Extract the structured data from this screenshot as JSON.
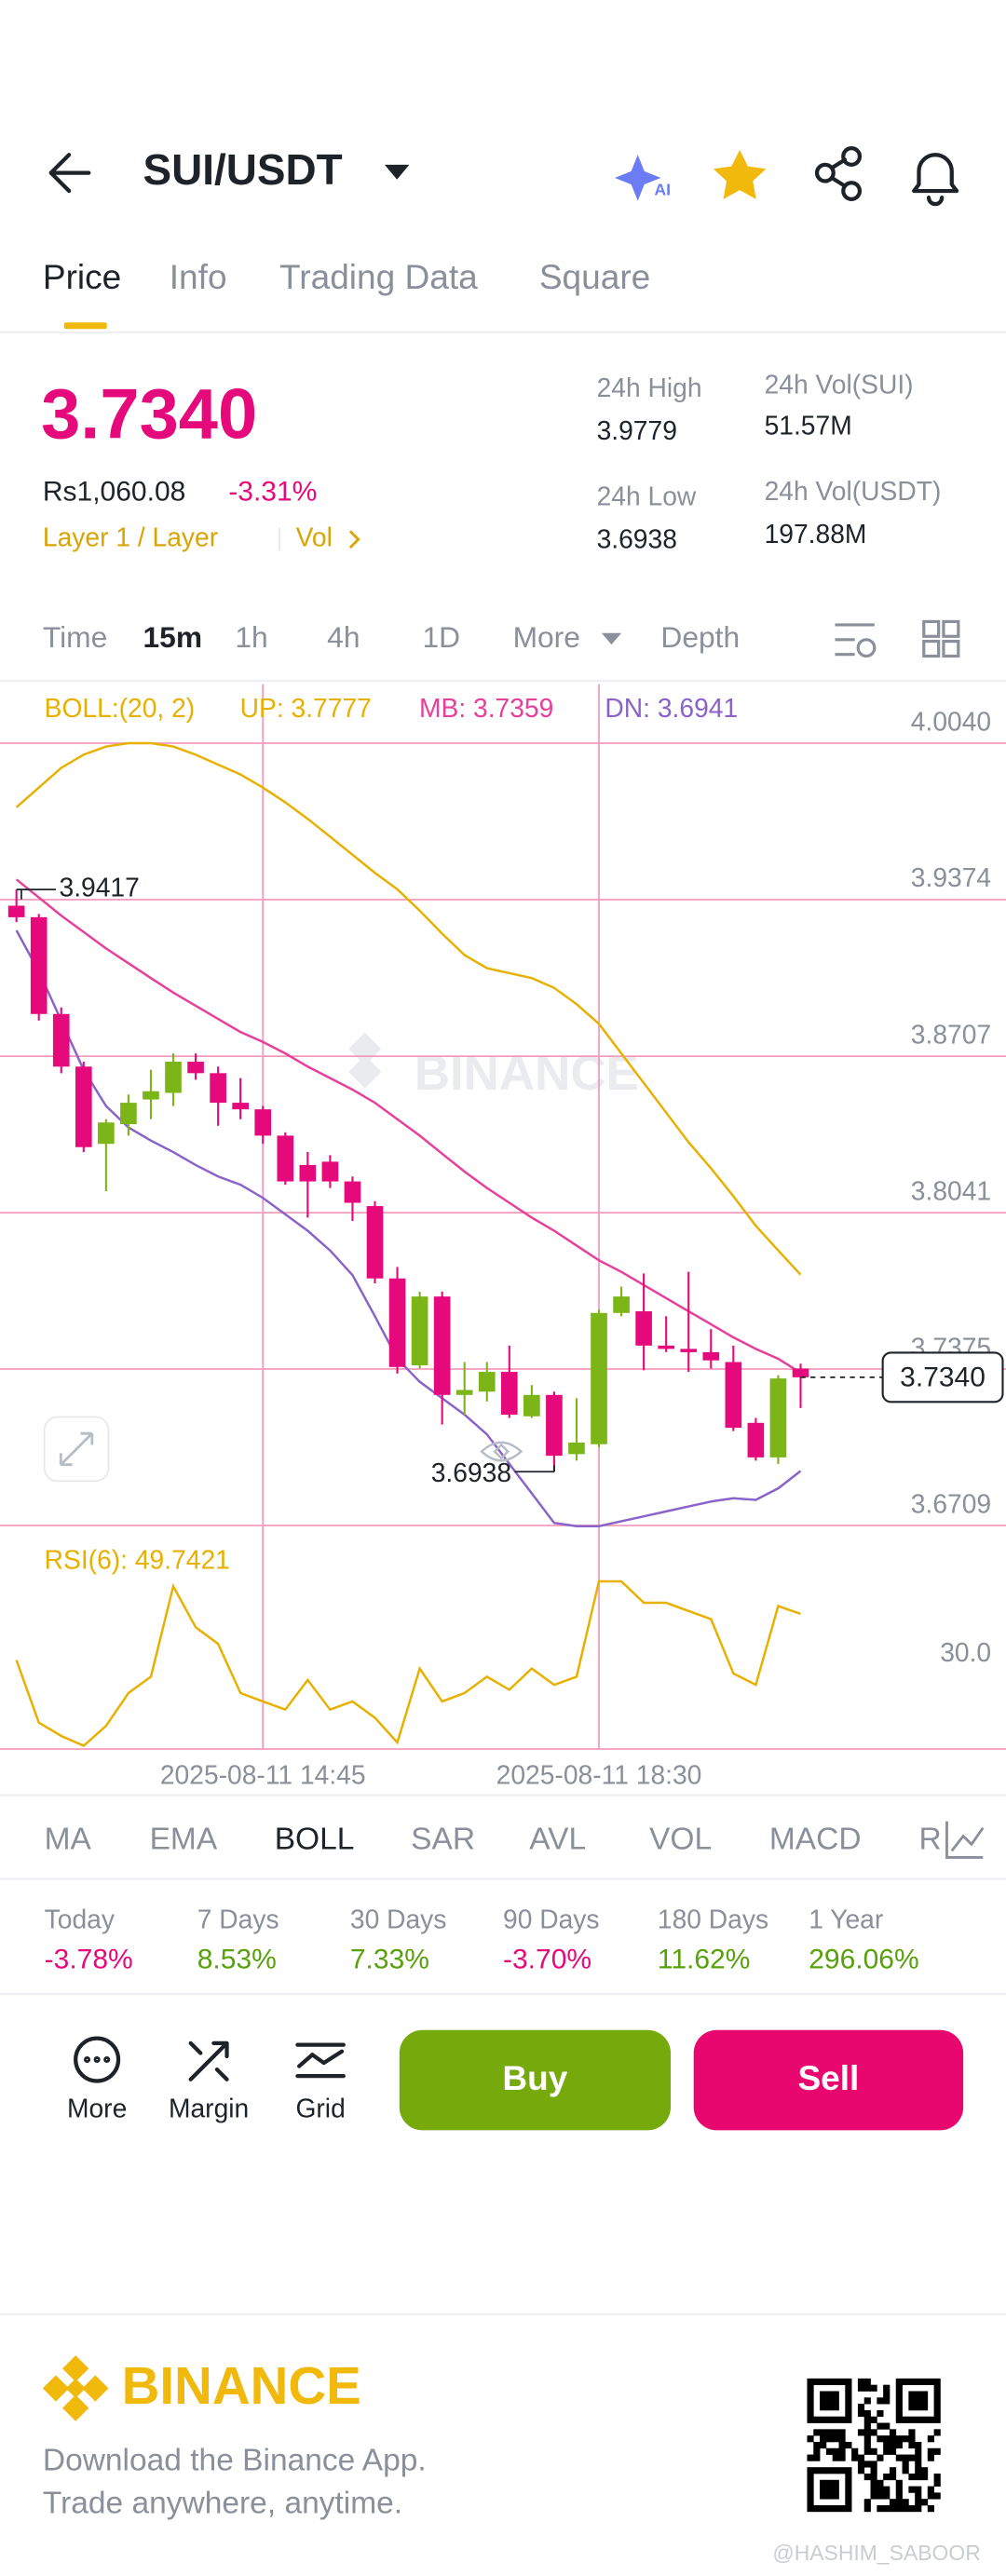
{
  "header": {
    "title": "SUI/USDT"
  },
  "tabs": [
    "Price",
    "Info",
    "Trading Data",
    "Square"
  ],
  "ticker": {
    "price": "3.7340",
    "fiat_price": "Rs1,060.08",
    "change": "-3.31%",
    "tag": "Layer 1 / Layer",
    "vol": "Vol",
    "stats": [
      {
        "label": "24h High",
        "value": "3.9779"
      },
      {
        "label": "24h Vol(SUI)",
        "value": "51.57M"
      },
      {
        "label": "24h Low",
        "value": "3.6938"
      },
      {
        "label": "24h Vol(USDT)",
        "value": "197.88M"
      }
    ]
  },
  "intervals": [
    "Time",
    "15m",
    "1h",
    "4h",
    "1D",
    "More",
    "Depth"
  ],
  "chart_data": {
    "type": "candlestick",
    "indicator": "BOLL:(20, 2)",
    "watermark": "BINANCE",
    "categories": [
      null,
      null,
      null,
      null,
      null,
      null,
      null,
      null,
      null,
      null,
      null,
      "2025-08-11 14:45",
      null,
      null,
      null,
      null,
      null,
      null,
      null,
      null,
      null,
      null,
      null,
      null,
      null,
      null,
      "2025-08-11 18:30",
      null,
      null,
      null,
      null,
      null,
      null,
      null,
      null,
      null
    ],
    "open": [
      3.9348,
      3.9299,
      3.8887,
      3.8663,
      3.8334,
      3.8418,
      3.8523,
      3.8551,
      3.8684,
      3.8635,
      3.8509,
      3.8481,
      3.8369,
      3.8244,
      3.8258,
      3.8174,
      3.8069,
      3.7761,
      3.7391,
      3.7684,
      3.7265,
      3.7279,
      3.7363,
      3.7174,
      3.7265,
      3.7013,
      3.7055,
      3.7614,
      3.7621,
      3.7475,
      3.7461,
      3.7447,
      3.7405,
      3.7146,
      3.6999,
      3.7377
    ],
    "high": [
      3.9417,
      3.9313,
      3.8915,
      3.8684,
      3.8439,
      3.8544,
      3.8649,
      3.8719,
      3.8719,
      3.8663,
      3.8614,
      3.8495,
      3.8383,
      3.8299,
      3.8286,
      3.8195,
      3.809,
      3.781,
      3.7705,
      3.7705,
      3.7405,
      3.7405,
      3.7475,
      3.7307,
      3.7279,
      3.7251,
      3.7628,
      3.7726,
      3.7782,
      3.76,
      3.7789,
      3.7545,
      3.7475,
      3.7167,
      3.7349,
      3.7398
    ],
    "low": [
      3.9278,
      3.8859,
      3.8635,
      3.8299,
      3.8132,
      3.8369,
      3.8439,
      3.8495,
      3.8607,
      3.8411,
      3.8439,
      3.8334,
      3.816,
      3.802,
      3.8146,
      3.8006,
      3.774,
      3.7356,
      3.7377,
      3.7139,
      3.7181,
      3.7237,
      3.7167,
      3.7167,
      3.6938,
      3.6985,
      3.7041,
      3.76,
      3.737,
      3.7447,
      3.7363,
      3.7377,
      3.7111,
      3.6985,
      3.6971,
      3.7209
    ],
    "close": [
      3.9299,
      3.8887,
      3.8663,
      3.832,
      3.8425,
      3.8509,
      3.8558,
      3.8684,
      3.8635,
      3.8509,
      3.8481,
      3.8369,
      3.8174,
      3.8174,
      3.8174,
      3.8083,
      3.7761,
      3.7384,
      3.7684,
      3.7265,
      3.7286,
      3.7363,
      3.7181,
      3.7265,
      3.7006,
      3.7062,
      3.7614,
      3.7684,
      3.7475,
      3.7461,
      3.7447,
      3.7412,
      3.7125,
      3.6999,
      3.7335,
      3.734
    ],
    "up_color": "#7cb518",
    "down_color": "#e6097c",
    "ylim": [
      3.6709,
      4.0292
    ],
    "yticks": [
      {
        "value": 4.004,
        "label": "4.0040"
      },
      3.9374,
      3.8707,
      3.8041,
      3.7375,
      3.6709
    ],
    "grid": true,
    "grid_color": "#f29bbd",
    "bands": [
      {
        "name": "UP: 3.7777",
        "color": "#e8b000",
        "values": [
          3.9767,
          3.9851,
          3.9935,
          3.9991,
          4.0026,
          4.004,
          4.004,
          4.0026,
          3.9991,
          3.9949,
          3.9907,
          3.9851,
          3.9788,
          3.9718,
          3.9642,
          3.9565,
          3.9488,
          3.9418,
          3.9327,
          3.9229,
          3.9138,
          3.9082,
          3.9061,
          3.904,
          3.8998,
          3.8929,
          3.8845,
          3.8719,
          3.8593,
          3.8467,
          3.8341,
          3.823,
          3.8111,
          3.7985,
          3.788,
          3.7777
        ]
      },
      {
        "name": "MB: 3.7359",
        "color": "#e6409a",
        "values": [
          3.946,
          3.9383,
          3.9306,
          3.9236,
          3.9166,
          3.9103,
          3.904,
          3.8978,
          3.8922,
          3.8866,
          3.881,
          3.8768,
          3.8719,
          3.8663,
          3.8614,
          3.8565,
          3.8509,
          3.8439,
          3.8369,
          3.8292,
          3.8216,
          3.8146,
          3.8083,
          3.802,
          3.7964,
          3.7901,
          3.7838,
          3.7789,
          3.7733,
          3.7677,
          3.7621,
          3.7566,
          3.751,
          3.7461,
          3.7419,
          3.7359
        ]
      },
      {
        "name": "DN: 3.6941",
        "color": "#8a63c9",
        "values": [
          3.9243,
          3.9068,
          3.8859,
          3.8649,
          3.8495,
          3.8404,
          3.8348,
          3.8299,
          3.8244,
          3.8195,
          3.816,
          3.8104,
          3.8034,
          3.7964,
          3.788,
          3.7775,
          3.76,
          3.7419,
          3.7321,
          3.7251,
          3.7181,
          3.7097,
          3.6971,
          3.6846,
          3.672,
          3.6706,
          3.6706,
          3.6727,
          3.6748,
          3.6769,
          3.679,
          3.6811,
          3.6825,
          3.6818,
          3.6867,
          3.6941
        ]
      }
    ],
    "high_marker": 3.9417,
    "low_marker": 3.6938,
    "last_price": {
      "value": 3.734,
      "label": "3.7340"
    },
    "rsi": {
      "name": "RSI(6): 49.7421",
      "color": "#e8b000",
      "values": [
        32.7,
        9.7,
        4.8,
        1.2,
        8.5,
        20.6,
        26.6,
        59.9,
        44.8,
        38.7,
        20.6,
        17.5,
        14.5,
        25.4,
        14.5,
        17.5,
        11.5,
        2.4,
        29.6,
        17.5,
        20.6,
        26.6,
        21.8,
        29.6,
        23.6,
        26.6,
        61.7,
        61.7,
        53.8,
        53.8,
        50.8,
        47.8,
        27.8,
        23.6,
        52.6,
        49.7421
      ],
      "ylim": [
        0,
        75
      ],
      "yticks": [
        {
          "value": 30,
          "label": "30.0"
        }
      ]
    }
  },
  "indicator_tabs": [
    "MA",
    "EMA",
    "BOLL",
    "SAR",
    "AVL",
    "VOL",
    "MACD",
    "RSI"
  ],
  "performance": [
    {
      "label": "Today",
      "value": "-3.78%"
    },
    {
      "label": "7 Days",
      "value": "8.53%"
    },
    {
      "label": "30 Days",
      "value": "7.33%"
    },
    {
      "label": "90 Days",
      "value": "-3.70%"
    },
    {
      "label": "180 Days",
      "value": "11.62%"
    },
    {
      "label": "1 Year",
      "value": "296.06%"
    }
  ],
  "actions": [
    "More",
    "Margin",
    "Grid"
  ],
  "trade_buttons": [
    "Buy",
    "Sell"
  ],
  "footer": {
    "brand": "BINANCE",
    "line1": "Download the Binance App.",
    "line2": "Trade anywhere, anytime.",
    "watermark": "@HASHIM_SABOOR"
  }
}
